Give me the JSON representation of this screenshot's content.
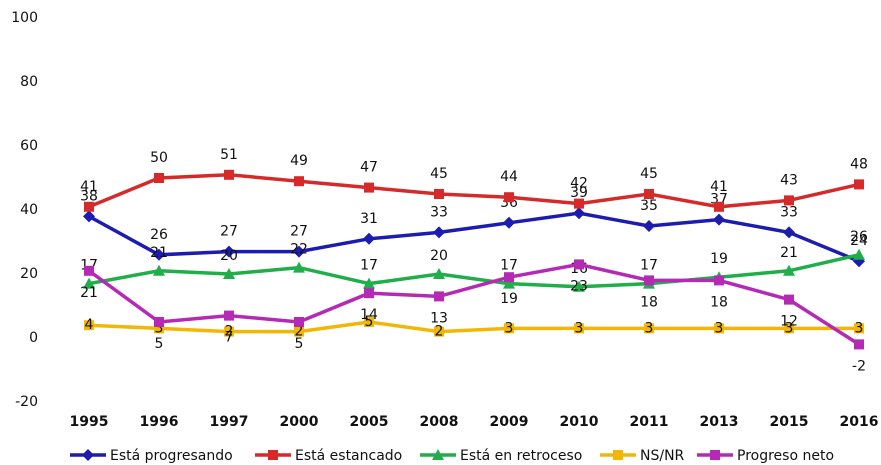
{
  "chart_data": {
    "type": "line",
    "categories": [
      "1995",
      "1996",
      "1997",
      "2000",
      "2005",
      "2008",
      "2009",
      "2010",
      "2011",
      "2013",
      "2015",
      "2016"
    ],
    "ylim": [
      -20,
      100
    ],
    "yticks": [
      -20,
      0,
      20,
      40,
      60,
      80,
      100
    ],
    "grid": false,
    "legend": "bottom",
    "series": [
      {
        "name": "Está progresando",
        "color": "#1c1cb0",
        "marker": "diamond",
        "values": [
          38,
          26,
          27,
          27,
          31,
          33,
          36,
          39,
          35,
          37,
          33,
          24
        ]
      },
      {
        "name": "Está estancado",
        "color": "#d62a2a",
        "marker": "square",
        "values": [
          41,
          50,
          51,
          49,
          47,
          45,
          44,
          42,
          45,
          41,
          43,
          48
        ]
      },
      {
        "name": "Está en retroceso",
        "color": "#1fae4a",
        "marker": "triangle",
        "values": [
          17,
          21,
          20,
          22,
          17,
          20,
          17,
          16,
          17,
          19,
          21,
          26
        ]
      },
      {
        "name": "NS/NR",
        "color": "#f2b705",
        "marker": "square",
        "values": [
          4,
          3,
          2,
          2,
          5,
          2,
          3,
          3,
          3,
          3,
          3,
          3
        ]
      },
      {
        "name": "Progreso neto",
        "color": "#b52ab5",
        "marker": "square",
        "values": [
          21,
          5,
          7,
          5,
          14,
          13,
          19,
          23,
          18,
          18,
          12,
          -2
        ]
      }
    ]
  }
}
